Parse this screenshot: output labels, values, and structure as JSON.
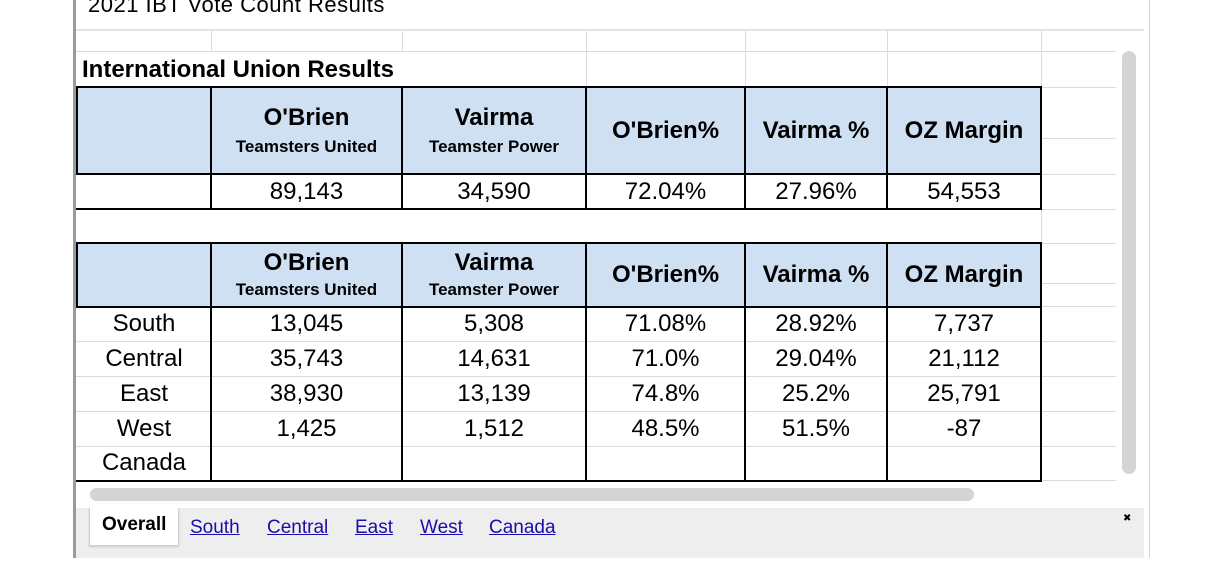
{
  "sheet": {
    "title": "2021 IBT Vote Count Results"
  },
  "section_title": "International Union Results",
  "headers": {
    "obrien_name": "O'Brien",
    "obrien_slate": "Teamsters United",
    "vairma_name": "Vairma",
    "vairma_slate": "Teamster Power",
    "obrien_pct": "O'Brien%",
    "vairma_pct": "Vairma %",
    "margin": "OZ Margin"
  },
  "totals": {
    "obrien": "89,143",
    "vairma": "34,590",
    "obrien_pct": "72.04%",
    "vairma_pct": "27.96%",
    "margin": "54,553"
  },
  "regions": [
    {
      "name": "South",
      "obrien": "13,045",
      "vairma": "5,308",
      "obrien_pct": "71.08%",
      "vairma_pct": "28.92%",
      "margin": "7,737"
    },
    {
      "name": "Central",
      "obrien": "35,743",
      "vairma": "14,631",
      "obrien_pct": "71.0%",
      "vairma_pct": "29.04%",
      "margin": "21,112"
    },
    {
      "name": "East",
      "obrien": "38,930",
      "vairma": "13,139",
      "obrien_pct": "74.8%",
      "vairma_pct": "25.2%",
      "margin": "25,791"
    },
    {
      "name": "West",
      "obrien": "1,425",
      "vairma": "1,512",
      "obrien_pct": "48.5%",
      "vairma_pct": "51.5%",
      "margin": "-87"
    },
    {
      "name": "Canada",
      "obrien": "",
      "vairma": "",
      "obrien_pct": "",
      "vairma_pct": "",
      "margin": ""
    }
  ],
  "tabs": [
    {
      "label": "Overall",
      "active": true
    },
    {
      "label": "South"
    },
    {
      "label": "Central"
    },
    {
      "label": "East"
    },
    {
      "label": "West"
    },
    {
      "label": "Canada"
    }
  ],
  "icons": {
    "corner": "close-icon"
  },
  "colors": {
    "header_fill": "#cfe0f2",
    "link": "#1a0dab",
    "grid": "#dcdcdc"
  }
}
